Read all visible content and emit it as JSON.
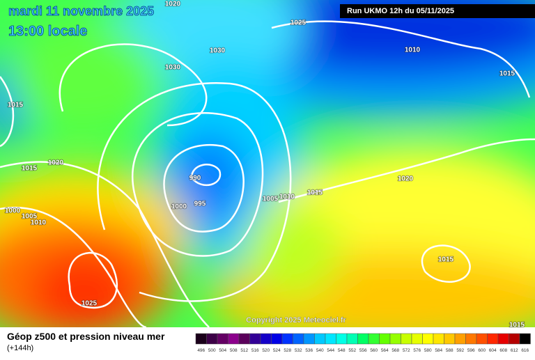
{
  "header": {
    "date": "mardi 11 novembre 2025",
    "time": "13:00 locale",
    "run": "Run UKMO 12h du 05/11/2025"
  },
  "isobar_labels": [
    1020,
    1025,
    1010,
    1015,
    1030,
    1030,
    1015,
    1020,
    1015,
    990,
    1000,
    995,
    1005,
    1010,
    1015,
    1020,
    1000,
    1005,
    1010,
    1015,
    1025,
    1015
  ],
  "copyright": "Copyright 2025 Meteociel.fr",
  "legend": {
    "title": "Géop z500 et pression niveau mer",
    "lead": "(+144h)",
    "values": [
      496,
      500,
      504,
      508,
      512,
      516,
      520,
      524,
      528,
      532,
      536,
      540,
      544,
      548,
      552,
      556,
      560,
      564,
      568,
      572,
      576,
      580,
      584,
      588,
      592,
      596,
      600,
      604,
      608,
      612,
      616
    ],
    "colors": [
      "#1a001a",
      "#3c0046",
      "#640064",
      "#8c008c",
      "#5a005a",
      "#320096",
      "#1400c8",
      "#0000e6",
      "#0032ff",
      "#0064ff",
      "#0096ff",
      "#00c8ff",
      "#00e6ff",
      "#00ffe6",
      "#00ffb4",
      "#00ff64",
      "#32ff32",
      "#64ff00",
      "#96ff00",
      "#c8ff00",
      "#e6ff00",
      "#ffff00",
      "#ffe600",
      "#ffc800",
      "#ffa000",
      "#ff7800",
      "#ff5000",
      "#ff2800",
      "#e60000",
      "#b40000",
      "#000000"
    ]
  }
}
